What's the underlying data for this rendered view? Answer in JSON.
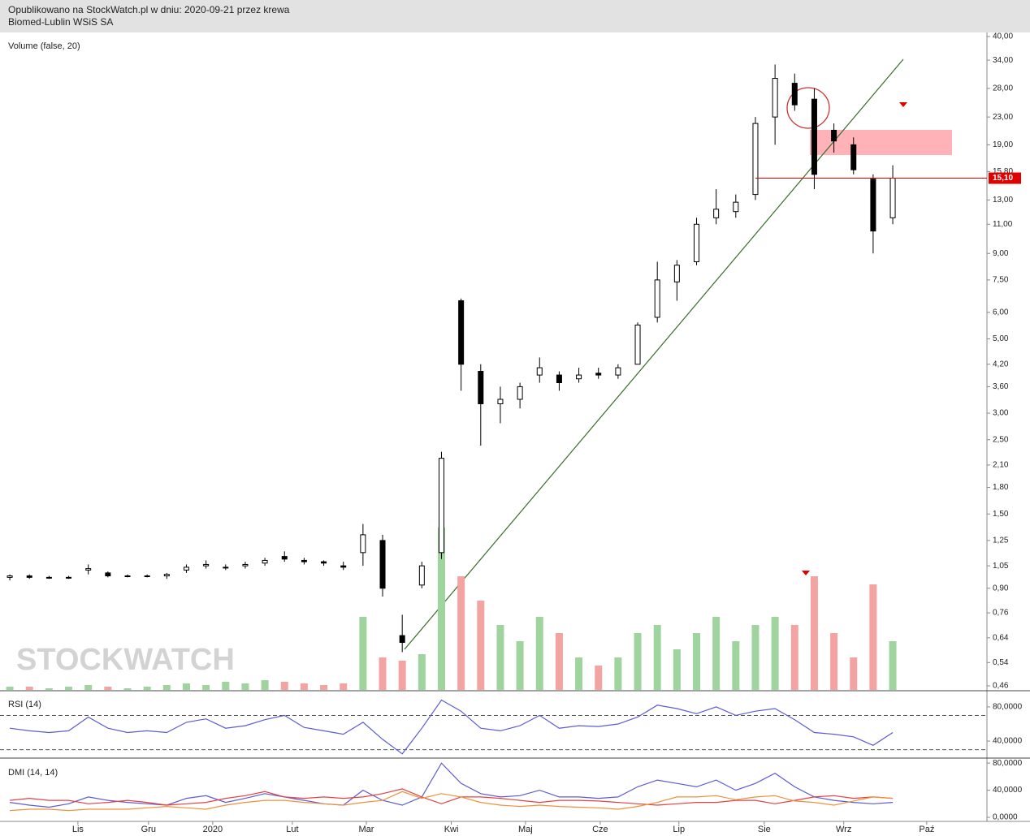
{
  "header": {
    "line1": "Opublikowano na StockWatch.pl w dniu: 2020-09-21 przez krewa",
    "line2": "Biomed-Lublin WSiS SA"
  },
  "chart_data": [
    {
      "type": "candlestick",
      "title": "Volume (false, 20)",
      "watermark": "STOCKWATCH",
      "log_y": true,
      "color": "#000000",
      "up_color": "#9fd49f",
      "down_color": "#f4a3a3",
      "open": [
        0.97,
        0.98,
        0.97,
        0.97,
        1.02,
        1.0,
        0.98,
        0.98,
        0.98,
        1.02,
        1.05,
        1.04,
        1.05,
        1.07,
        1.12,
        1.09,
        1.08,
        1.05,
        1.15,
        1.25,
        0.65,
        0.92,
        1.15,
        6.5,
        4.0,
        3.2,
        3.3,
        3.9,
        3.9,
        3.8,
        3.95,
        3.9,
        4.2,
        5.8,
        7.4,
        8.5,
        11.5,
        12.0,
        13.5,
        23,
        29,
        26,
        21,
        19,
        15,
        11.5
      ],
      "high": [
        0.99,
        0.99,
        0.98,
        0.98,
        1.06,
        1.01,
        0.99,
        0.99,
        1.0,
        1.06,
        1.09,
        1.06,
        1.08,
        1.11,
        1.16,
        1.11,
        1.09,
        1.08,
        1.4,
        1.3,
        0.75,
        1.08,
        2.3,
        6.6,
        4.2,
        3.6,
        3.7,
        4.4,
        4.0,
        4.1,
        4.1,
        4.2,
        5.6,
        8.5,
        8.6,
        11.5,
        14,
        13.5,
        23,
        33,
        31,
        28,
        22,
        20,
        15.5,
        16.5
      ],
      "low": [
        0.95,
        0.96,
        0.96,
        0.96,
        0.99,
        0.97,
        0.97,
        0.97,
        0.96,
        1.0,
        1.03,
        1.02,
        1.03,
        1.05,
        1.08,
        1.06,
        1.05,
        1.02,
        1.05,
        0.85,
        0.58,
        0.9,
        1.1,
        3.5,
        2.4,
        2.8,
        3.1,
        3.7,
        3.5,
        3.7,
        3.8,
        3.8,
        4.2,
        5.6,
        6.5,
        8.3,
        11,
        11.5,
        13,
        19,
        24,
        14,
        18,
        15.5,
        9,
        11
      ],
      "close": [
        0.98,
        0.97,
        0.97,
        0.97,
        1.03,
        0.98,
        0.98,
        0.98,
        0.99,
        1.04,
        1.06,
        1.04,
        1.06,
        1.09,
        1.1,
        1.08,
        1.07,
        1.04,
        1.3,
        0.9,
        0.62,
        1.05,
        2.2,
        4.2,
        3.2,
        3.3,
        3.6,
        4.1,
        3.7,
        3.9,
        3.9,
        4.1,
        5.5,
        7.5,
        8.3,
        11,
        12.2,
        12.8,
        22,
        30,
        25,
        15.5,
        19.5,
        16,
        10.5,
        15.1
      ],
      "volume": [
        2,
        2,
        1,
        2,
        3,
        2,
        1,
        2,
        3,
        4,
        3,
        5,
        4,
        6,
        5,
        4,
        3,
        4,
        45,
        20,
        18,
        22,
        100,
        70,
        55,
        40,
        30,
        45,
        35,
        20,
        15,
        20,
        35,
        40,
        25,
        35,
        45,
        30,
        40,
        45,
        40,
        70,
        35,
        20,
        65,
        30
      ],
      "ylim": [
        0.46,
        40
      ],
      "yticks": [
        {
          "value": 40,
          "label": "40,00"
        },
        {
          "value": 34,
          "label": "34,00"
        },
        {
          "value": 28,
          "label": "28,00"
        },
        {
          "value": 23,
          "label": "23,00"
        },
        {
          "value": 19,
          "label": "19,00"
        },
        {
          "value": 15.8,
          "label": "15,80"
        },
        {
          "value": 13,
          "label": "13,00"
        },
        {
          "value": 11,
          "label": "11,00"
        },
        {
          "value": 9,
          "label": "9,00"
        },
        {
          "value": 7.5,
          "label": "7,50"
        },
        {
          "value": 6,
          "label": "6,00"
        },
        {
          "value": 5,
          "label": "5,00"
        },
        {
          "value": 4.2,
          "label": "4,20"
        },
        {
          "value": 3.6,
          "label": "3,60"
        },
        {
          "value": 3,
          "label": "3,00"
        },
        {
          "value": 2.5,
          "label": "2,50"
        },
        {
          "value": 2.1,
          "label": "2,10"
        },
        {
          "value": 1.8,
          "label": "1,80"
        },
        {
          "value": 1.5,
          "label": "1,50"
        },
        {
          "value": 1.25,
          "label": "1,25"
        },
        {
          "value": 1.05,
          "label": "1,05"
        },
        {
          "value": 0.9,
          "label": "0,90"
        },
        {
          "value": 0.76,
          "label": "0,76"
        },
        {
          "value": 0.64,
          "label": "0,64"
        },
        {
          "value": 0.54,
          "label": "0,54"
        },
        {
          "value": 0.46,
          "label": "0,46"
        }
      ],
      "last": {
        "value": 15.1,
        "label": "15,10",
        "color": "#e00000"
      },
      "xlim": [
        -0.5,
        49.8
      ],
      "xticks": [
        {
          "value": 3.47,
          "label": "Lis"
        },
        {
          "value": 7.07,
          "label": "Gru"
        },
        {
          "value": 10.34,
          "label": "2020"
        },
        {
          "value": 14.4,
          "label": "Lut"
        },
        {
          "value": 18.17,
          "label": "Mar"
        },
        {
          "value": 22.5,
          "label": "Kwi"
        },
        {
          "value": 26.28,
          "label": "Maj"
        },
        {
          "value": 30.09,
          "label": "Cze"
        },
        {
          "value": 34.1,
          "label": "Lip"
        },
        {
          "value": 38.45,
          "label": "Sie"
        },
        {
          "value": 42.5,
          "label": "Wrz"
        },
        {
          "value": 46.73,
          "label": "Paź"
        }
      ]
    },
    {
      "type": "line",
      "title": "RSI (14)",
      "ylim": [
        22,
        97
      ],
      "yticks": [
        {
          "value": 80,
          "label": "80,0000"
        },
        {
          "value": 40,
          "label": "40,0000"
        }
      ],
      "levels": [
        70,
        30
      ],
      "series": [
        {
          "color": "#5b5bd6",
          "values": [
            55,
            52,
            50,
            52,
            68,
            55,
            50,
            52,
            50,
            62,
            66,
            55,
            58,
            65,
            70,
            56,
            52,
            48,
            62,
            42,
            25,
            55,
            88,
            75,
            55,
            52,
            58,
            70,
            55,
            58,
            57,
            60,
            68,
            82,
            78,
            72,
            80,
            70,
            75,
            78,
            65,
            50,
            48,
            45,
            35,
            50
          ]
        }
      ]
    },
    {
      "type": "line",
      "title": "DMI (14, 14)",
      "ylim": [
        -6,
        85
      ],
      "yticks": [
        {
          "value": 80,
          "label": "80,0000"
        },
        {
          "value": 40,
          "label": "40,0000"
        },
        {
          "value": 0,
          "label": "0,0000"
        }
      ],
      "series": [
        {
          "color": "#5b5bd6",
          "values": [
            22,
            18,
            15,
            20,
            30,
            25,
            22,
            20,
            18,
            28,
            32,
            22,
            28,
            35,
            30,
            25,
            20,
            18,
            40,
            25,
            18,
            30,
            80,
            50,
            35,
            30,
            32,
            40,
            30,
            30,
            28,
            30,
            45,
            55,
            50,
            45,
            55,
            40,
            50,
            65,
            45,
            30,
            25,
            22,
            20,
            22
          ]
        },
        {
          "color": "#e84040",
          "values": [
            25,
            28,
            25,
            25,
            20,
            22,
            25,
            22,
            18,
            20,
            22,
            28,
            32,
            38,
            30,
            28,
            30,
            28,
            30,
            35,
            42,
            30,
            20,
            30,
            30,
            28,
            25,
            22,
            25,
            25,
            24,
            22,
            20,
            18,
            20,
            22,
            22,
            25,
            25,
            20,
            25,
            30,
            32,
            28,
            30,
            28
          ]
        },
        {
          "color": "#f0903a",
          "values": [
            10,
            12,
            12,
            10,
            12,
            12,
            12,
            14,
            16,
            14,
            12,
            18,
            22,
            25,
            25,
            22,
            20,
            18,
            22,
            25,
            38,
            28,
            35,
            30,
            22,
            18,
            16,
            18,
            16,
            15,
            14,
            12,
            16,
            22,
            30,
            30,
            32,
            26,
            30,
            32,
            24,
            22,
            18,
            24,
            30,
            28
          ]
        }
      ]
    }
  ]
}
